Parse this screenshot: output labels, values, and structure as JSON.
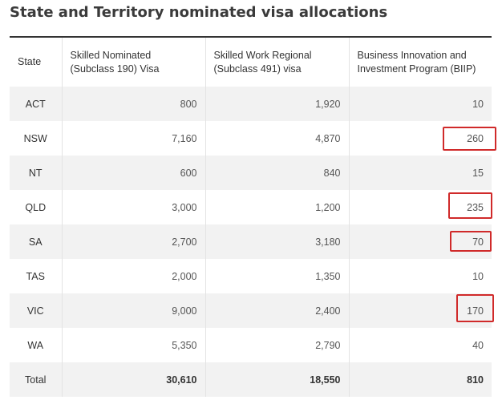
{
  "title": "State and Territory nominated visa allocations",
  "columns": [
    "State",
    "Skilled Nominated (Subclass 190) Visa",
    "Skilled Work Regional (Subclass 491) visa",
    "Business Innovation and Investment Program (BIIP)"
  ],
  "rows": [
    {
      "state": "ACT",
      "v190": "800",
      "v491": "1,920",
      "biip": "10"
    },
    {
      "state": "NSW",
      "v190": "7,160",
      "v491": "4,870",
      "biip": "260"
    },
    {
      "state": "NT",
      "v190": "600",
      "v491": "840",
      "biip": "15"
    },
    {
      "state": "QLD",
      "v190": "3,000",
      "v491": "1,200",
      "biip": "235"
    },
    {
      "state": "SA",
      "v190": "2,700",
      "v491": "3,180",
      "biip": "70"
    },
    {
      "state": "TAS",
      "v190": "2,000",
      "v491": "1,350",
      "biip": "10"
    },
    {
      "state": "VIC",
      "v190": "9,000",
      "v491": "2,400",
      "biip": "170"
    },
    {
      "state": "WA",
      "v190": "5,350",
      "v491": "2,790",
      "biip": "40"
    }
  ],
  "total": {
    "state": "Total",
    "v190": "30,610",
    "v491": "18,550",
    "biip": "810"
  },
  "highlight_color": "#d02a2a"
}
